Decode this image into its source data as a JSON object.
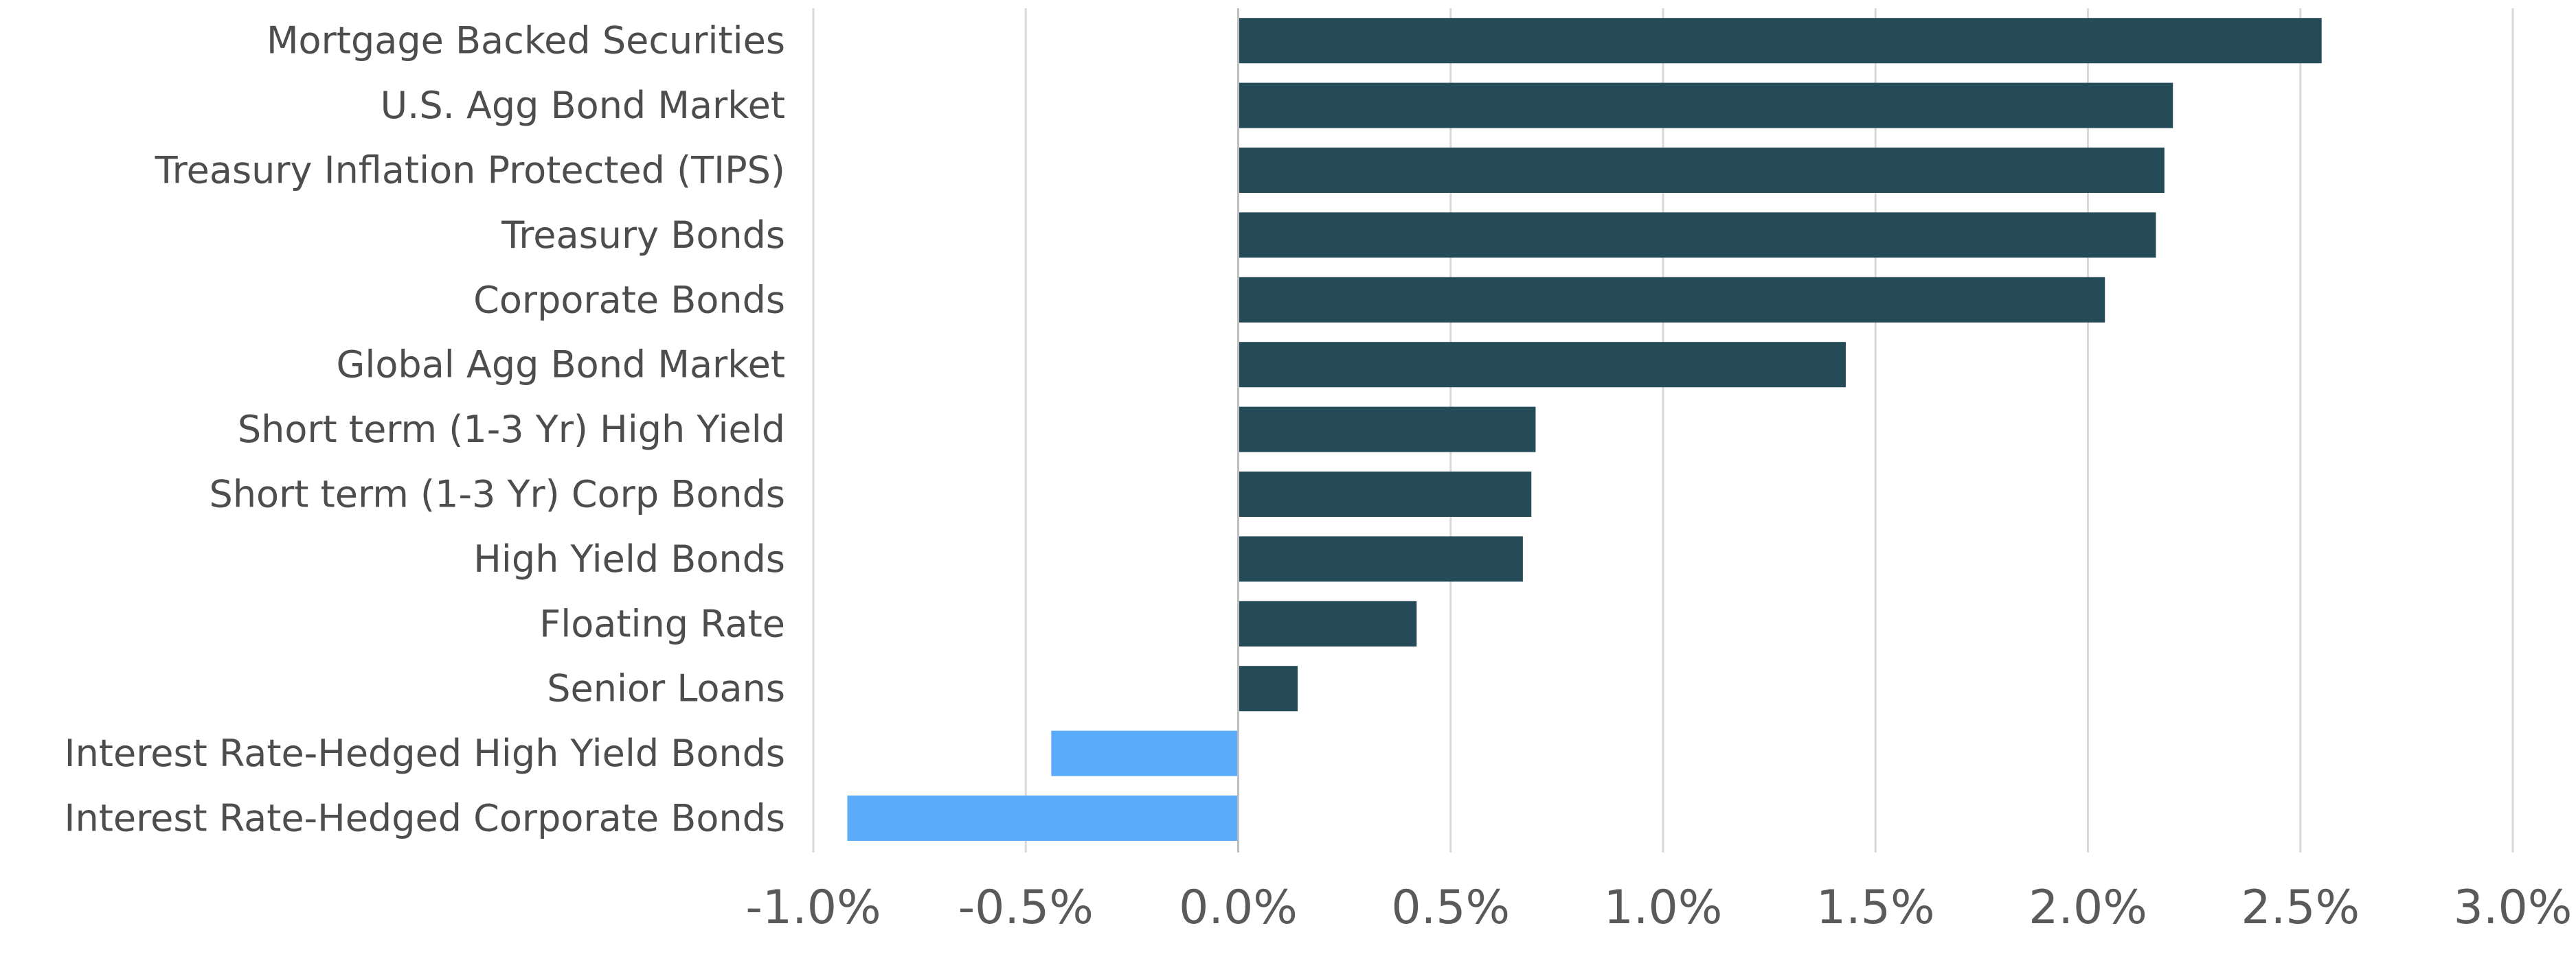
{
  "chart_data": {
    "type": "bar",
    "orientation": "horizontal",
    "title": "",
    "xlabel": "",
    "ylabel": "",
    "xlim": [
      -1.0,
      3.0
    ],
    "x_ticks": [
      -1.0,
      -0.5,
      0.0,
      0.5,
      1.0,
      1.5,
      2.0,
      2.5,
      3.0
    ],
    "x_tick_labels": [
      "-1.0%",
      "-0.5%",
      "0.0%",
      "0.5%",
      "1.0%",
      "1.5%",
      "2.0%",
      "2.5%",
      "3.0%"
    ],
    "grid": "vertical",
    "legend": "none",
    "colors": {
      "positive": "#244b57",
      "negative": "#5aabfa"
    },
    "categories": [
      "Mortgage Backed Securities",
      "U.S. Agg Bond Market",
      "Treasury Inflation Protected (TIPS)",
      "Treasury Bonds",
      "Corporate Bonds",
      "Global Agg Bond Market",
      "Short term (1-3 Yr) High Yield",
      "Short term (1-3 Yr) Corp Bonds",
      "High Yield Bonds",
      "Floating Rate",
      "Senior Loans",
      "Interest Rate-Hedged High Yield Bonds",
      "Interest Rate-Hedged Corporate Bonds"
    ],
    "values": [
      2.55,
      2.2,
      2.18,
      2.16,
      2.04,
      1.43,
      0.7,
      0.69,
      0.67,
      0.42,
      0.14,
      -0.44,
      -0.92
    ],
    "unit": "%"
  }
}
